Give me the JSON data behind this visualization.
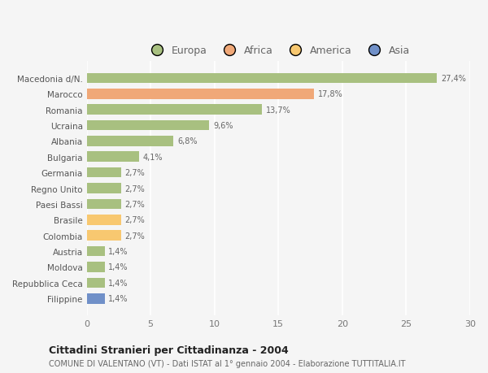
{
  "categories": [
    "Macedonia d/N.",
    "Marocco",
    "Romania",
    "Ucraina",
    "Albania",
    "Bulgaria",
    "Germania",
    "Regno Unito",
    "Paesi Bassi",
    "Brasile",
    "Colombia",
    "Austria",
    "Moldova",
    "Repubblica Ceca",
    "Filippine"
  ],
  "values": [
    27.4,
    17.8,
    13.7,
    9.6,
    6.8,
    4.1,
    2.7,
    2.7,
    2.7,
    2.7,
    2.7,
    1.4,
    1.4,
    1.4,
    1.4
  ],
  "labels": [
    "27,4%",
    "17,8%",
    "13,7%",
    "9,6%",
    "6,8%",
    "4,1%",
    "2,7%",
    "2,7%",
    "2,7%",
    "2,7%",
    "2,7%",
    "1,4%",
    "1,4%",
    "1,4%",
    "1,4%"
  ],
  "colors": [
    "#a8c080",
    "#f0a878",
    "#a8c080",
    "#a8c080",
    "#a8c080",
    "#a8c080",
    "#a8c080",
    "#a8c080",
    "#a8c080",
    "#f8c870",
    "#f8c870",
    "#a8c080",
    "#a8c080",
    "#a8c080",
    "#7090c8"
  ],
  "legend_labels": [
    "Europa",
    "Africa",
    "America",
    "Asia"
  ],
  "legend_colors": [
    "#a8c080",
    "#f0a878",
    "#f8c870",
    "#7090c8"
  ],
  "title": "Cittadini Stranieri per Cittadinanza - 2004",
  "subtitle": "COMUNE DI VALENTANO (VT) - Dati ISTAT al 1° gennaio 2004 - Elaborazione TUTTITALIA.IT",
  "xlim": [
    0,
    30
  ],
  "xticks": [
    0,
    5,
    10,
    15,
    20,
    25,
    30
  ],
  "background_color": "#f5f5f5",
  "grid_color": "#ffffff",
  "bar_height": 0.65
}
